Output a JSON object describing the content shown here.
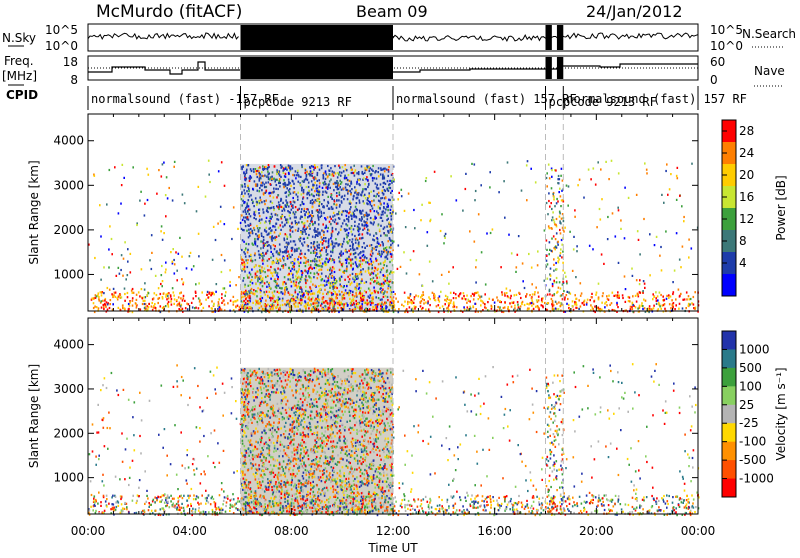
{
  "header": {
    "station": "McMurdo (fitACF)",
    "beam": "Beam 09",
    "date": "24/Jan/2012"
  },
  "left_labels": {
    "nsky": "N.Sky",
    "freq": "Freq.",
    "freq_unit": "[MHz]",
    "cpid": "CPID"
  },
  "right_labels": {
    "nsearch": "N.Search",
    "nave": "Nave"
  },
  "noise_axis": {
    "left_ticks": [
      "10^5",
      "10^0"
    ],
    "right_ticks": [
      "10^5",
      "10^0"
    ]
  },
  "freq_axis": {
    "left_ticks": [
      "18",
      "8"
    ],
    "right_ticks": [
      "60",
      "0"
    ]
  },
  "cpid_segments": [
    {
      "label": "normalsound (fast) -157 RF",
      "start_hr": 0,
      "end_hr": 6
    },
    {
      "label": "pcpcode 9213 RF",
      "start_hr": 6,
      "end_hr": 12
    },
    {
      "label": "normalsound (fast) 157 RF",
      "start_hr": 12,
      "end_hr": 18
    },
    {
      "label": "pcpcode 9213 RF",
      "start_hr": 18,
      "end_hr": 18.7
    },
    {
      "label": "normalsound (fast) 157 RF",
      "start_hr": 18.7,
      "end_hr": 24
    }
  ],
  "chart_data": [
    {
      "type": "heatmap",
      "title": "Power",
      "ylabel": "Slant Range [km]",
      "xlabel": "Time UT",
      "x_ticks": [
        "00:00",
        "04:00",
        "08:00",
        "12:00",
        "16:00",
        "20:00",
        "00:00"
      ],
      "y_ticks": [
        "1000",
        "2000",
        "3000",
        "4000"
      ],
      "ylim": [
        180,
        4600
      ],
      "xlim_hours": [
        0,
        24
      ],
      "colorbar": {
        "label": "Power [dB]",
        "ticks": [
          "28",
          "24",
          "20",
          "16",
          "12",
          "8",
          "4"
        ],
        "range": [
          0,
          30
        ],
        "colors": [
          "#ff0000",
          "#ff7f00",
          "#ffcc00",
          "#c8e632",
          "#3ca03c",
          "#3c7878",
          "#1e3caa",
          "#0000ff"
        ]
      },
      "dense_block_hours": [
        6,
        12
      ],
      "dashed_line_hours": [
        6,
        12,
        18,
        18.7
      ]
    },
    {
      "type": "heatmap",
      "title": "Velocity",
      "ylabel": "Slant Range [km]",
      "xlabel": "Time UT",
      "x_ticks": [
        "00:00",
        "04:00",
        "08:00",
        "12:00",
        "16:00",
        "20:00",
        "00:00"
      ],
      "y_ticks": [
        "1000",
        "2000",
        "3000",
        "4000"
      ],
      "ylim": [
        180,
        4600
      ],
      "xlim_hours": [
        0,
        24
      ],
      "colorbar": {
        "label": "Velocity [m s⁻¹]",
        "ticks": [
          "1000",
          "500",
          "100",
          "25",
          "-25",
          "-100",
          "-500",
          "-1000"
        ],
        "range": [
          -1200,
          1200
        ],
        "colors": [
          "#2233aa",
          "#2a7a8a",
          "#3ca03c",
          "#88d060",
          "#b4b4b4",
          "#ffd800",
          "#ff9000",
          "#ff5000",
          "#ff0000"
        ]
      },
      "dense_block_hours": [
        6,
        12
      ],
      "dashed_line_hours": [
        6,
        12,
        18,
        18.7
      ]
    }
  ],
  "x_axis_title": "Time UT"
}
